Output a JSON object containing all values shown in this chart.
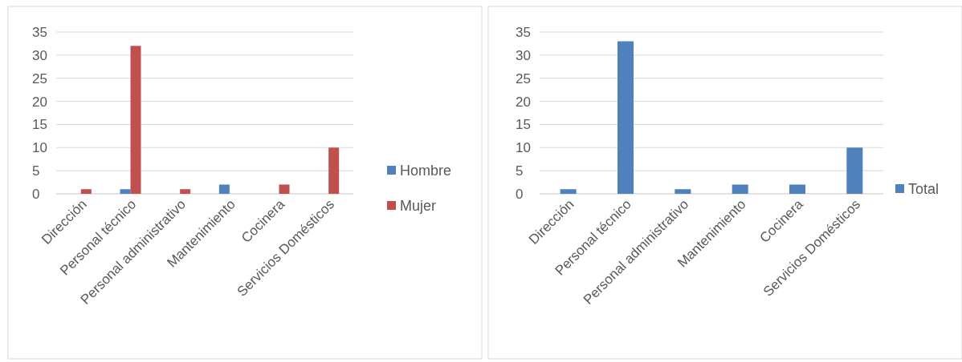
{
  "chart_data": [
    {
      "type": "bar",
      "categories": [
        "Dirección",
        "Personal técnico",
        "Personal administrativo",
        "Mantenimiento",
        "Cocinera",
        "Servicios Domésticos"
      ],
      "series": [
        {
          "name": "Hombre",
          "color": "#4f81bd",
          "values": [
            0,
            1,
            0,
            2,
            0,
            0
          ]
        },
        {
          "name": "Mujer",
          "color": "#c0504d",
          "values": [
            1,
            32,
            1,
            0,
            2,
            10
          ]
        }
      ],
      "ylim": [
        0,
        35
      ],
      "yticks": [
        0,
        5,
        10,
        15,
        20,
        25,
        30,
        35
      ],
      "grid": "y",
      "legend": "right"
    },
    {
      "type": "bar",
      "categories": [
        "Dirección",
        "Personal técnico",
        "Personal administrativo",
        "Mantenimiento",
        "Cocinera",
        "Servicios Domésticos"
      ],
      "series": [
        {
          "name": "Total",
          "color": "#4f81bd",
          "values": [
            1,
            33,
            1,
            2,
            2,
            10
          ]
        }
      ],
      "ylim": [
        0,
        35
      ],
      "yticks": [
        0,
        5,
        10,
        15,
        20,
        25,
        30,
        35
      ],
      "grid": "y",
      "legend": "right"
    }
  ]
}
